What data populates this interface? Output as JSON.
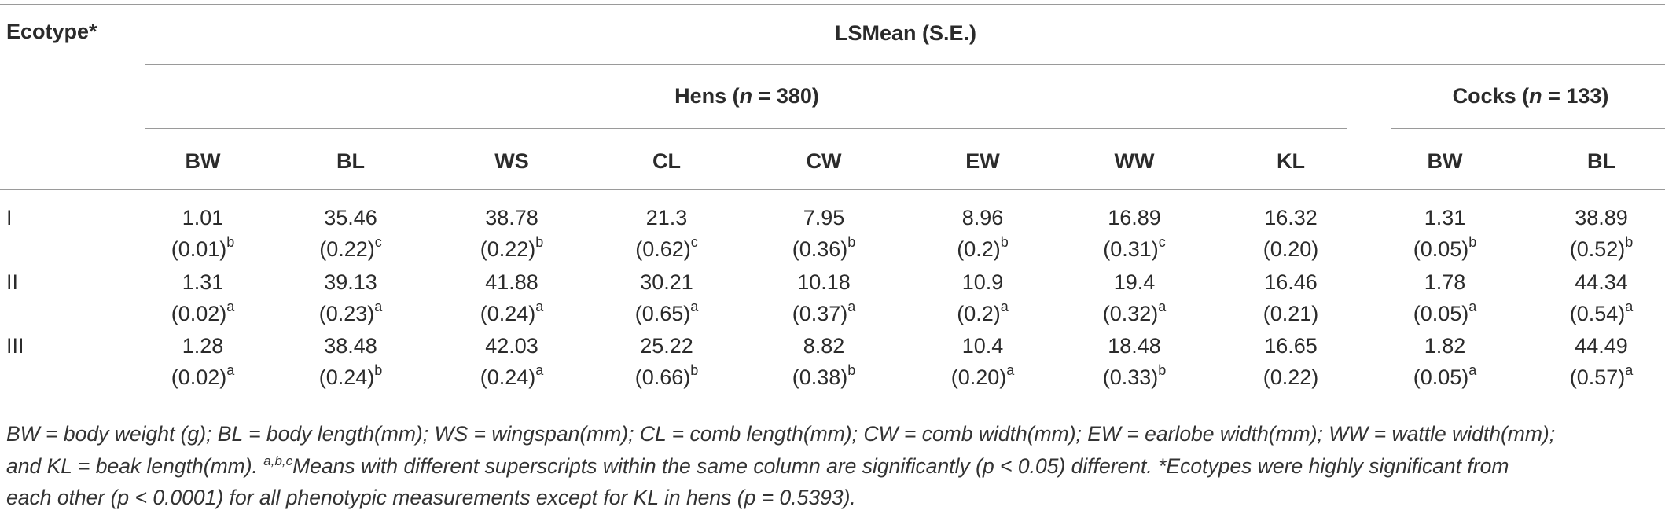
{
  "header": {
    "ecotype": "Ecotype*",
    "lsmean": "LSMean (S.E.)",
    "hens_prefix": "Hens (",
    "hens_n": "n",
    "hens_suffix": " = 380)",
    "cocks_prefix": "Cocks (",
    "cocks_n": "n",
    "cocks_suffix": " = 133)"
  },
  "columns": [
    "BW",
    "BL",
    "WS",
    "CL",
    "CW",
    "EW",
    "WW",
    "KL",
    "BW",
    "BL"
  ],
  "rows": [
    {
      "label": "I",
      "cells": [
        {
          "v": "1.01",
          "se": "(0.01)",
          "sup": "b"
        },
        {
          "v": "35.46",
          "se": "(0.22)",
          "sup": "c"
        },
        {
          "v": "38.78",
          "se": "(0.22)",
          "sup": "b"
        },
        {
          "v": "21.3",
          "se": "(0.62)",
          "sup": "c"
        },
        {
          "v": "7.95",
          "se": "(0.36)",
          "sup": "b"
        },
        {
          "v": "8.96",
          "se": "(0.2)",
          "sup": "b"
        },
        {
          "v": "16.89",
          "se": "(0.31)",
          "sup": "c"
        },
        {
          "v": "16.32",
          "se": "(0.20)",
          "sup": ""
        },
        {
          "v": "1.31",
          "se": "(0.05)",
          "sup": "b"
        },
        {
          "v": "38.89",
          "se": "(0.52)",
          "sup": "b"
        }
      ]
    },
    {
      "label": "II",
      "cells": [
        {
          "v": "1.31",
          "se": "(0.02)",
          "sup": "a"
        },
        {
          "v": "39.13",
          "se": "(0.23)",
          "sup": "a"
        },
        {
          "v": "41.88",
          "se": "(0.24)",
          "sup": "a"
        },
        {
          "v": "30.21",
          "se": "(0.65)",
          "sup": "a"
        },
        {
          "v": "10.18",
          "se": "(0.37)",
          "sup": "a"
        },
        {
          "v": "10.9",
          "se": "(0.2)",
          "sup": "a"
        },
        {
          "v": "19.4",
          "se": "(0.32)",
          "sup": "a"
        },
        {
          "v": "16.46",
          "se": "(0.21)",
          "sup": ""
        },
        {
          "v": "1.78",
          "se": "(0.05)",
          "sup": "a"
        },
        {
          "v": "44.34",
          "se": "(0.54)",
          "sup": "a"
        }
      ]
    },
    {
      "label": "III",
      "cells": [
        {
          "v": "1.28",
          "se": "(0.02)",
          "sup": "a"
        },
        {
          "v": "38.48",
          "se": "(0.24)",
          "sup": "b"
        },
        {
          "v": "42.03",
          "se": "(0.24)",
          "sup": "a"
        },
        {
          "v": "25.22",
          "se": "(0.66)",
          "sup": "b"
        },
        {
          "v": "8.82",
          "se": "(0.38)",
          "sup": "b"
        },
        {
          "v": "10.4",
          "se": "(0.20)",
          "sup": "a"
        },
        {
          "v": "18.48",
          "se": "(0.33)",
          "sup": "b"
        },
        {
          "v": "16.65",
          "se": "(0.22)",
          "sup": ""
        },
        {
          "v": "1.82",
          "se": "(0.05)",
          "sup": "a"
        },
        {
          "v": "44.49",
          "se": "(0.57)",
          "sup": "a"
        }
      ]
    }
  ],
  "footnote": {
    "line1": "BW = body weight (g); BL = body length(mm); WS = wingspan(mm); CL = comb length(mm); CW = comb width(mm); EW = earlobe width(mm); WW = wattle width(mm);",
    "line2_a": "and KL =  beak length(mm). ",
    "line2_sup": "a,b,c",
    "line2_b": "Means with different superscripts within the same column are significantly (p < 0.05) different. *Ecotypes were highly significant from",
    "line3": "each other (p < 0.0001) for all phenotypic measurements except for KL in hens (p = 0.5393)."
  }
}
